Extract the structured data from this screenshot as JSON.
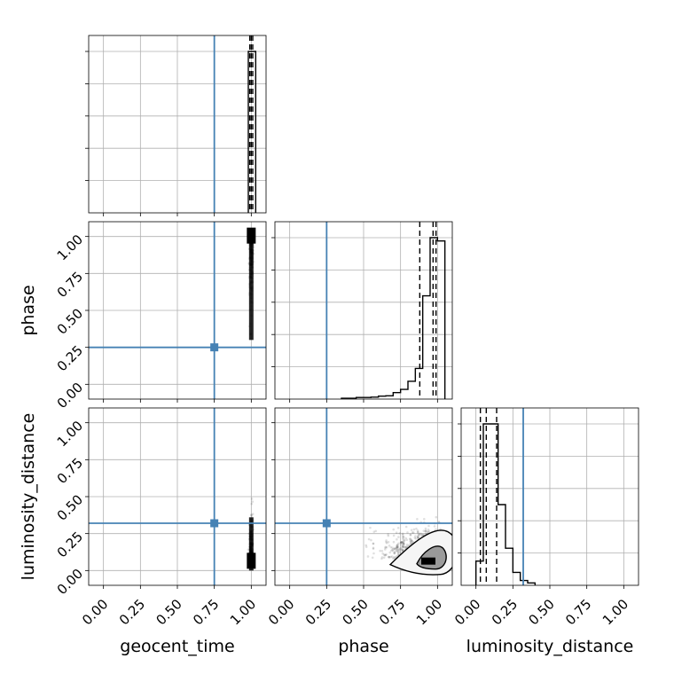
{
  "chart_data": {
    "type": "corner",
    "parameters": [
      "geocent_time",
      "phase",
      "luminosity_distance"
    ],
    "axis_range": [
      -0.1,
      1.1
    ],
    "tick_values": [
      0.0,
      0.25,
      0.5,
      0.75,
      1.0
    ],
    "tick_labels": [
      "0.00",
      "0.25",
      "0.50",
      "0.75",
      "1.00"
    ],
    "grid": true,
    "truth_color": "#4682b4",
    "truths": {
      "geocent_time": 0.75,
      "phase": 0.25,
      "luminosity_distance": 0.32
    },
    "diagonal": {
      "geocent_time": {
        "bin_edges": [
          0.98,
          1.03
        ],
        "counts": [
          1.0
        ],
        "quantiles": [
          0.99,
          1.0,
          1.01
        ]
      },
      "phase": {
        "bin_edges": [
          0.35,
          0.4,
          0.45,
          0.5,
          0.55,
          0.6,
          0.65,
          0.7,
          0.75,
          0.8,
          0.85,
          0.9,
          0.95,
          1.0,
          1.05
        ],
        "counts": [
          0.005,
          0.005,
          0.01,
          0.01,
          0.012,
          0.018,
          0.02,
          0.04,
          0.06,
          0.11,
          0.19,
          0.64,
          1.0,
          0.98
        ],
        "quantiles": [
          0.88,
          0.97,
          0.99
        ]
      },
      "luminosity_distance": {
        "bin_edges": [
          0.0,
          0.05,
          0.1,
          0.15,
          0.2,
          0.25,
          0.3,
          0.35,
          0.4
        ],
        "counts": [
          0.15,
          1.0,
          1.0,
          0.5,
          0.23,
          0.08,
          0.03,
          0.015
        ],
        "quantiles": [
          0.03,
          0.07,
          0.14
        ]
      }
    },
    "contours": [
      {
        "x": "phase",
        "y": "luminosity_distance",
        "center": [
          0.95,
          0.07
        ]
      }
    ],
    "xlabel_bottom": [
      "geocent_time",
      "phase",
      "luminosity_distance"
    ],
    "ylabel_left": [
      "",
      "phase",
      "luminosity_distance"
    ]
  }
}
